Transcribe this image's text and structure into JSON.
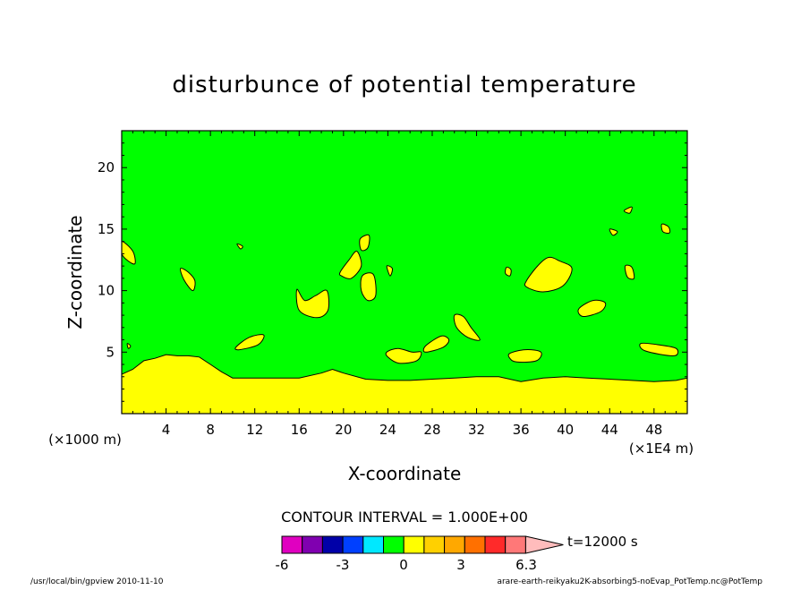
{
  "chart_data": {
    "type": "contour",
    "title": "disturbunce of potential temperature",
    "xlabel": "X-coordinate",
    "ylabel": "Z-coordinate",
    "x_unit_note": "(×1E4 m)",
    "y_unit_note": "(×1000 m)",
    "xlim": [
      0,
      51
    ],
    "ylim": [
      0,
      23
    ],
    "x_ticks": [
      4,
      8,
      12,
      16,
      20,
      24,
      28,
      32,
      36,
      40,
      44,
      48
    ],
    "y_ticks": [
      5,
      10,
      15,
      20
    ],
    "contour_interval_text": "CONTOUR INTERVAL = 1.000E+00",
    "time_text": "t=12000 s",
    "colorbar": {
      "ticks": [
        "-6",
        "-3",
        "0",
        "3",
        "6.3"
      ],
      "colors": [
        "#e000c0",
        "#8000b0",
        "#0000a8",
        "#0040ff",
        "#00e8ff",
        "#00ff00",
        "#ffff00",
        "#ffd000",
        "#ffa800",
        "#ff7000",
        "#ff2a2a",
        "#ff7878",
        "#ffbcbc"
      ]
    },
    "field_levels": {
      "background_color": "#00ff00",
      "positive_color": "#ffff00"
    },
    "surface_layer": {
      "x": [
        0,
        1,
        2,
        3,
        4,
        5,
        6,
        7,
        8,
        9,
        10,
        12,
        14,
        16,
        18,
        19,
        20,
        22,
        24,
        26,
        28,
        30,
        32,
        34,
        36,
        38,
        40,
        42,
        44,
        46,
        48,
        50,
        51
      ],
      "top_z": [
        3.2,
        3.6,
        4.3,
        4.5,
        4.8,
        4.7,
        4.7,
        4.6,
        4.0,
        3.4,
        2.9,
        2.9,
        2.9,
        2.9,
        3.3,
        3.6,
        3.3,
        2.8,
        2.7,
        2.7,
        2.8,
        2.9,
        3.0,
        3.0,
        2.6,
        2.9,
        3.0,
        2.9,
        2.8,
        2.7,
        2.6,
        2.7,
        2.9
      ]
    },
    "positive_blobs": [
      {
        "x": [
          0,
          1,
          1.2,
          0.6,
          0
        ],
        "z": [
          14.0,
          13.2,
          12.2,
          12.4,
          13.0
        ]
      },
      {
        "x": [
          5.3,
          6.0,
          6.6,
          6.4,
          5.6
        ],
        "z": [
          11.8,
          11.5,
          10.8,
          10.0,
          10.9
        ]
      },
      {
        "x": [
          10.3,
          11.5,
          12.8,
          12.3,
          10.6
        ],
        "z": [
          5.4,
          6.2,
          6.4,
          5.6,
          5.2
        ]
      },
      {
        "x": [
          15.8,
          16.5,
          17.5,
          18.5,
          18.6,
          17.6,
          16.0
        ],
        "z": [
          10.1,
          9.2,
          9.6,
          10.0,
          8.4,
          7.8,
          8.4
        ]
      },
      {
        "x": [
          19.7,
          20.5,
          21.2,
          21.6,
          20.7,
          19.8
        ],
        "z": [
          11.5,
          12.5,
          13.2,
          12.0,
          11.0,
          11.2
        ]
      },
      {
        "x": [
          21.5,
          22.3,
          22.2,
          21.6
        ],
        "z": [
          14.2,
          14.5,
          13.5,
          13.3
        ]
      },
      {
        "x": [
          21.7,
          22.7,
          22.9,
          22.2,
          21.6
        ],
        "z": [
          11.2,
          11.3,
          9.6,
          9.2,
          10.0
        ]
      },
      {
        "x": [
          23.9,
          24.9,
          26.2,
          27.0,
          26.6,
          25.0,
          24.0
        ],
        "z": [
          5.0,
          5.3,
          5.0,
          5.0,
          4.3,
          4.1,
          4.6
        ]
      },
      {
        "x": [
          27.4,
          28.8,
          29.5,
          29.0,
          27.4
        ],
        "z": [
          5.5,
          6.3,
          6.0,
          5.4,
          5.0
        ]
      },
      {
        "x": [
          30.0,
          30.8,
          31.5,
          32.3,
          31.2,
          30.2
        ],
        "z": [
          8.0,
          7.9,
          7.0,
          6.0,
          6.2,
          7.0
        ]
      },
      {
        "x": [
          35.0,
          36.4,
          37.8,
          37.4,
          35.6,
          35.0
        ],
        "z": [
          4.9,
          5.2,
          5.0,
          4.3,
          4.2,
          4.5
        ]
      },
      {
        "x": [
          36.5,
          37.5,
          38.5,
          39.5,
          40.6,
          39.8,
          38.0,
          36.5
        ],
        "z": [
          10.8,
          12.0,
          12.7,
          12.4,
          11.8,
          10.4,
          9.9,
          10.3
        ]
      },
      {
        "x": [
          41.2,
          42.5,
          43.6,
          43.2,
          41.6
        ],
        "z": [
          8.5,
          9.2,
          9.0,
          8.3,
          7.9
        ]
      },
      {
        "x": [
          45.3,
          46.0,
          45.8
        ],
        "z": [
          16.5,
          16.8,
          16.3
        ]
      },
      {
        "x": [
          46.8,
          48.4,
          50.0,
          49.8,
          47.2
        ],
        "z": [
          5.7,
          5.6,
          5.3,
          4.7,
          5.1
        ]
      },
      {
        "x": [
          48.7,
          49.3,
          49.4,
          48.8
        ],
        "z": [
          15.4,
          15.2,
          14.7,
          14.8
        ]
      },
      {
        "x": [
          44.0,
          44.7,
          44.3
        ],
        "z": [
          15.0,
          14.8,
          14.5
        ]
      },
      {
        "x": [
          45.4,
          46.0,
          46.2,
          45.6
        ],
        "z": [
          12.0,
          11.9,
          11.0,
          11.1
        ]
      },
      {
        "x": [
          34.7,
          35.1,
          35.0,
          34.6
        ],
        "z": [
          11.9,
          11.7,
          11.2,
          11.4
        ]
      },
      {
        "x": [
          10.4,
          10.9,
          10.7
        ],
        "z": [
          13.8,
          13.6,
          13.4
        ]
      },
      {
        "x": [
          23.9,
          24.4,
          24.2
        ],
        "z": [
          12.0,
          11.8,
          11.2
        ]
      },
      {
        "x": [
          0.5,
          0.8,
          0.6
        ],
        "z": [
          5.7,
          5.5,
          5.3
        ]
      }
    ]
  },
  "footer": {
    "left": "/usr/local/bin/gpview  2010-11-10",
    "right": "arare-earth-reikyaku2K-absorbing5-noEvap_PotTemp.nc@PotTemp"
  }
}
